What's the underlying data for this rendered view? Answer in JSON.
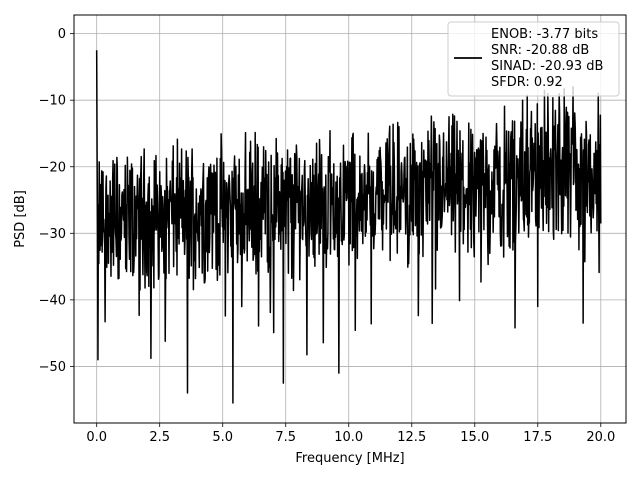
{
  "chart_data": {
    "type": "line",
    "title": "",
    "xlabel": "Frequency [MHz]",
    "ylabel": "PSD [dB]",
    "xlim": [
      -0.9,
      21.0
    ],
    "ylim": [
      -58.5,
      2.8
    ],
    "x_ticks": [
      0.0,
      2.5,
      5.0,
      7.5,
      10.0,
      12.5,
      15.0,
      17.5,
      20.0
    ],
    "x_tick_labels": [
      "0.0",
      "2.5",
      "5.0",
      "7.5",
      "10.0",
      "12.5",
      "15.0",
      "17.5",
      "20.0"
    ],
    "y_ticks": [
      0,
      -10,
      -20,
      -30,
      -40,
      -50
    ],
    "y_tick_labels": [
      "0",
      "−10",
      "−20",
      "−30",
      "−40",
      "−50"
    ],
    "grid": true,
    "legend_position": "top-right",
    "series": [
      {
        "color": "#000000",
        "x_range": [
          0.0,
          20.0
        ],
        "n_points": 1200,
        "peak": {
          "x": 0.0,
          "y": -2.5
        },
        "approx_floor_y": -28,
        "approx_upper_envelope_y": -15,
        "notable_minima": [
          {
            "x": 0.05,
            "y": -49
          },
          {
            "x": 3.6,
            "y": -54
          },
          {
            "x": 5.4,
            "y": -55.5
          },
          {
            "x": 7.4,
            "y": -52.5
          },
          {
            "x": 9.6,
            "y": -51
          },
          {
            "x": 17.5,
            "y": -41
          },
          {
            "x": 19.3,
            "y": -43.5
          }
        ],
        "notable_maxima": [
          {
            "x": 16.9,
            "y": -10
          },
          {
            "x": 17.9,
            "y": -9
          },
          {
            "x": 18.9,
            "y": -8
          },
          {
            "x": 19.9,
            "y": -9
          }
        ]
      }
    ],
    "legend": {
      "lines": [
        "ENOB: -3.77 bits",
        "SNR: -20.88 dB",
        "SINAD: -20.93 dB",
        "SFDR: 0.92"
      ]
    }
  }
}
